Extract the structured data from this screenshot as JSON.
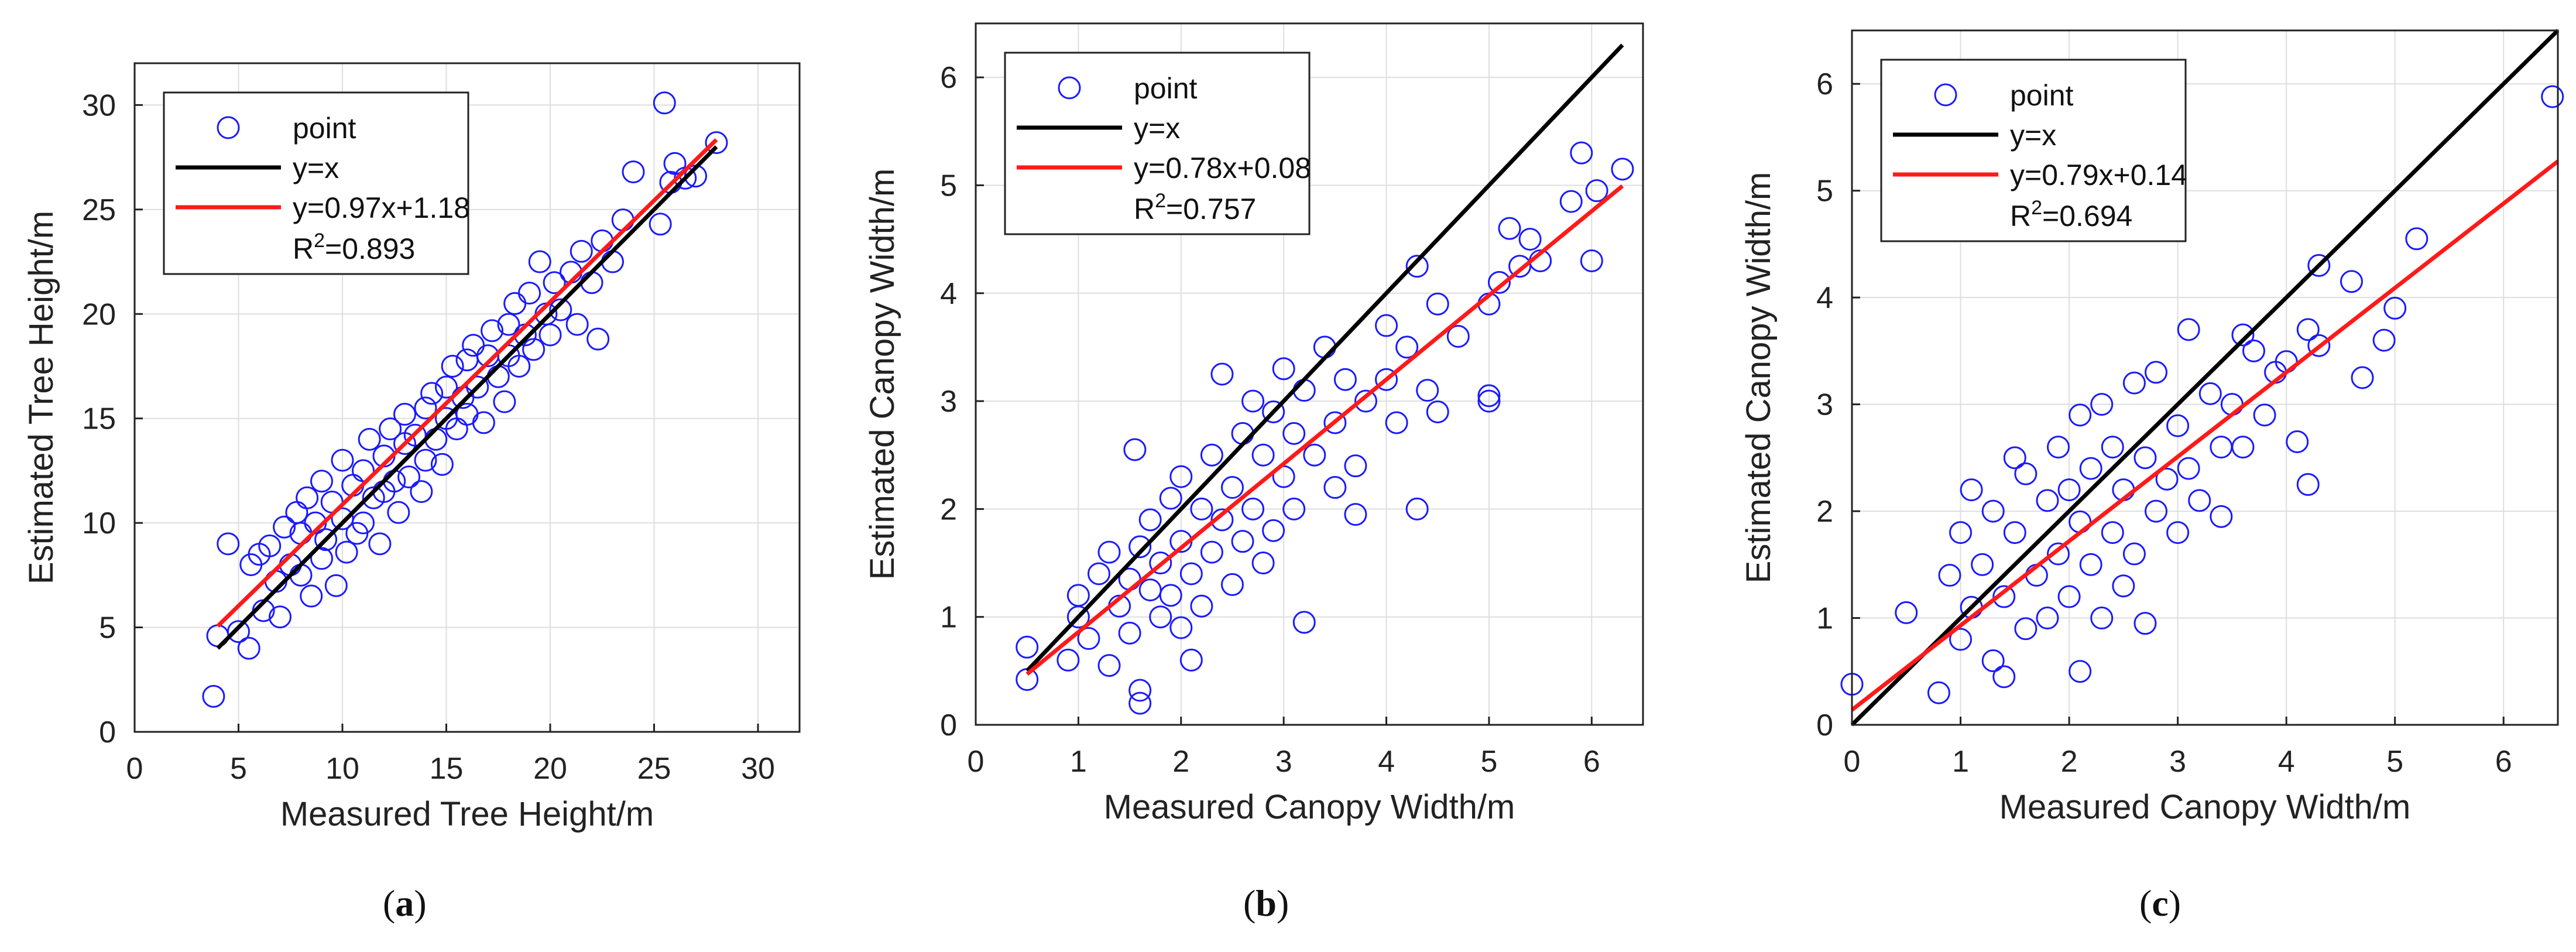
{
  "figure": {
    "panel_labels": [
      {
        "open": "(",
        "letter": "a",
        "close": ")"
      },
      {
        "open": "(",
        "letter": "b",
        "close": ")"
      },
      {
        "open": "(",
        "letter": "c",
        "close": ")"
      }
    ]
  },
  "colors": {
    "points": "#1a1aff",
    "identity_line": "#000000",
    "fit_line": "#ff1a1a",
    "grid": "#dedede",
    "axes": "#222222"
  },
  "chart_data": [
    {
      "type": "scatter",
      "panel": "a",
      "xlabel": "Measured Tree Height/m",
      "ylabel": "Estimated Tree Height/m",
      "xlim": [
        0,
        32
      ],
      "ylim": [
        0,
        32
      ],
      "xticks": [
        0,
        5,
        10,
        15,
        20,
        25,
        30
      ],
      "yticks": [
        0,
        5,
        10,
        15,
        20,
        25,
        30
      ],
      "grid": true,
      "legend": {
        "position": "top-left",
        "point_label": "point",
        "identity_label": "y=x",
        "fit_label": "y=0.97x+1.18",
        "r2_prefix": "R",
        "r2_sup": "2",
        "r2_value": "=0.893"
      },
      "identity_line": {
        "x": [
          4,
          28
        ]
      },
      "fit_line": {
        "slope": 0.97,
        "intercept": 1.18,
        "x": [
          4,
          28
        ]
      },
      "points": [
        [
          3.8,
          1.7
        ],
        [
          4.0,
          4.6
        ],
        [
          4.5,
          9.0
        ],
        [
          5.0,
          4.8
        ],
        [
          5.5,
          4.0
        ],
        [
          5.6,
          8.0
        ],
        [
          6.0,
          8.5
        ],
        [
          6.2,
          5.8
        ],
        [
          6.5,
          8.9
        ],
        [
          6.8,
          7.2
        ],
        [
          7.0,
          5.5
        ],
        [
          7.2,
          9.8
        ],
        [
          7.5,
          8.0
        ],
        [
          7.8,
          10.5
        ],
        [
          8.0,
          7.5
        ],
        [
          8.0,
          9.5
        ],
        [
          8.3,
          11.2
        ],
        [
          8.5,
          6.5
        ],
        [
          8.7,
          10.0
        ],
        [
          9.0,
          8.3
        ],
        [
          9.0,
          12.0
        ],
        [
          9.2,
          9.2
        ],
        [
          9.5,
          11.0
        ],
        [
          9.7,
          7.0
        ],
        [
          10.0,
          10.2
        ],
        [
          10.0,
          13.0
        ],
        [
          10.2,
          8.6
        ],
        [
          10.5,
          11.8
        ],
        [
          10.7,
          9.5
        ],
        [
          11.0,
          12.5
        ],
        [
          11.0,
          10.0
        ],
        [
          11.3,
          14.0
        ],
        [
          11.5,
          11.2
        ],
        [
          11.8,
          9.0
        ],
        [
          12.0,
          13.2
        ],
        [
          12.0,
          11.5
        ],
        [
          12.3,
          14.5
        ],
        [
          12.5,
          12.0
        ],
        [
          12.7,
          10.5
        ],
        [
          13.0,
          13.8
        ],
        [
          13.0,
          15.2
        ],
        [
          13.2,
          12.2
        ],
        [
          13.5,
          14.2
        ],
        [
          13.8,
          11.5
        ],
        [
          14.0,
          15.5
        ],
        [
          14.0,
          13.0
        ],
        [
          14.3,
          16.2
        ],
        [
          14.5,
          14.0
        ],
        [
          14.8,
          12.8
        ],
        [
          15.0,
          16.5
        ],
        [
          15.0,
          15.0
        ],
        [
          15.3,
          17.5
        ],
        [
          15.5,
          14.5
        ],
        [
          15.8,
          16.0
        ],
        [
          16.0,
          17.8
        ],
        [
          16.0,
          15.2
        ],
        [
          16.3,
          18.5
        ],
        [
          16.5,
          16.5
        ],
        [
          16.8,
          14.8
        ],
        [
          17.0,
          18.0
        ],
        [
          17.2,
          19.2
        ],
        [
          17.5,
          17.0
        ],
        [
          17.8,
          15.8
        ],
        [
          18.0,
          19.5
        ],
        [
          18.0,
          18.0
        ],
        [
          18.3,
          20.5
        ],
        [
          18.5,
          17.5
        ],
        [
          18.8,
          19.0
        ],
        [
          19.0,
          21.0
        ],
        [
          19.2,
          18.3
        ],
        [
          19.5,
          22.5
        ],
        [
          19.8,
          20.0
        ],
        [
          20.0,
          19.0
        ],
        [
          20.2,
          21.5
        ],
        [
          20.5,
          20.2
        ],
        [
          21.0,
          22.0
        ],
        [
          21.3,
          19.5
        ],
        [
          21.5,
          23.0
        ],
        [
          22.0,
          21.5
        ],
        [
          22.3,
          18.8
        ],
        [
          22.5,
          23.5
        ],
        [
          23.0,
          22.5
        ],
        [
          23.5,
          24.5
        ],
        [
          24.0,
          26.8
        ],
        [
          25.3,
          24.3
        ],
        [
          25.5,
          30.1
        ],
        [
          25.8,
          26.3
        ],
        [
          26.0,
          27.2
        ],
        [
          26.5,
          26.5
        ],
        [
          27.0,
          26.6
        ],
        [
          28.0,
          28.2
        ]
      ]
    },
    {
      "type": "scatter",
      "panel": "b",
      "xlabel": "Measured Canopy Width/m",
      "ylabel": "Estimated Canopy Width/m",
      "xlim": [
        0,
        6.5
      ],
      "ylim": [
        0,
        6.5
      ],
      "xticks": [
        0,
        1,
        2,
        3,
        4,
        5,
        6
      ],
      "yticks": [
        0,
        1,
        2,
        3,
        4,
        5,
        6
      ],
      "grid": true,
      "legend": {
        "position": "top-left",
        "point_label": "point",
        "identity_label": "y=x",
        "fit_label": "y=0.78x+0.08",
        "r2_prefix": "R",
        "r2_sup": "2",
        "r2_value": "=0.757"
      },
      "identity_line": {
        "x": [
          0.5,
          6.3
        ]
      },
      "fit_line": {
        "slope": 0.78,
        "intercept": 0.08,
        "x": [
          0.5,
          6.3
        ]
      },
      "points": [
        [
          0.5,
          0.42
        ],
        [
          0.5,
          0.72
        ],
        [
          0.9,
          0.6
        ],
        [
          1.0,
          1.2
        ],
        [
          1.0,
          1.0
        ],
        [
          1.1,
          0.8
        ],
        [
          1.2,
          1.4
        ],
        [
          1.3,
          0.55
        ],
        [
          1.3,
          1.6
        ],
        [
          1.4,
          1.1
        ],
        [
          1.5,
          0.85
        ],
        [
          1.5,
          1.35
        ],
        [
          1.55,
          2.55
        ],
        [
          1.6,
          0.2
        ],
        [
          1.6,
          0.32
        ],
        [
          1.6,
          1.65
        ],
        [
          1.7,
          1.25
        ],
        [
          1.7,
          1.9
        ],
        [
          1.8,
          1.0
        ],
        [
          1.8,
          1.5
        ],
        [
          1.9,
          2.1
        ],
        [
          1.9,
          1.2
        ],
        [
          2.0,
          1.7
        ],
        [
          2.0,
          0.9
        ],
        [
          2.0,
          2.3
        ],
        [
          2.1,
          1.4
        ],
        [
          2.1,
          0.6
        ],
        [
          2.2,
          2.0
        ],
        [
          2.2,
          1.1
        ],
        [
          2.3,
          2.5
        ],
        [
          2.3,
          1.6
        ],
        [
          2.4,
          3.25
        ],
        [
          2.4,
          1.9
        ],
        [
          2.5,
          1.3
        ],
        [
          2.5,
          2.2
        ],
        [
          2.6,
          2.7
        ],
        [
          2.6,
          1.7
        ],
        [
          2.7,
          2.0
        ],
        [
          2.7,
          3.0
        ],
        [
          2.8,
          1.5
        ],
        [
          2.8,
          2.5
        ],
        [
          2.9,
          2.9
        ],
        [
          2.9,
          1.8
        ],
        [
          3.0,
          2.3
        ],
        [
          3.0,
          3.3
        ],
        [
          3.1,
          2.0
        ],
        [
          3.1,
          2.7
        ],
        [
          3.2,
          3.1
        ],
        [
          3.2,
          0.95
        ],
        [
          3.3,
          2.5
        ],
        [
          3.4,
          3.5
        ],
        [
          3.5,
          2.8
        ],
        [
          3.5,
          2.2
        ],
        [
          3.6,
          3.2
        ],
        [
          3.7,
          2.4
        ],
        [
          3.7,
          1.95
        ],
        [
          3.8,
          3.0
        ],
        [
          4.0,
          3.7
        ],
        [
          4.0,
          3.2
        ],
        [
          4.1,
          2.8
        ],
        [
          4.2,
          3.5
        ],
        [
          4.3,
          4.25
        ],
        [
          4.3,
          2.0
        ],
        [
          4.4,
          3.1
        ],
        [
          4.5,
          2.9
        ],
        [
          4.5,
          3.9
        ],
        [
          4.7,
          3.6
        ],
        [
          5.0,
          3.05
        ],
        [
          5.0,
          3.0
        ],
        [
          5.0,
          3.9
        ],
        [
          5.1,
          4.1
        ],
        [
          5.2,
          4.6
        ],
        [
          5.3,
          4.25
        ],
        [
          5.4,
          4.5
        ],
        [
          5.5,
          4.3
        ],
        [
          5.8,
          4.85
        ],
        [
          5.9,
          5.3
        ],
        [
          6.0,
          4.3
        ],
        [
          6.05,
          4.95
        ],
        [
          6.3,
          5.15
        ]
      ]
    },
    {
      "type": "scatter",
      "panel": "c",
      "xlabel": "Measured Canopy Width/m",
      "ylabel": "Estimated Canopy Width/m",
      "xlim": [
        0,
        6.5
      ],
      "ylim": [
        0,
        6.5
      ],
      "xticks": [
        0,
        1,
        2,
        3,
        4,
        5,
        6
      ],
      "yticks": [
        0,
        1,
        2,
        3,
        4,
        5,
        6
      ],
      "grid": true,
      "legend": {
        "position": "top-left",
        "point_label": "point",
        "identity_label": "y=x",
        "fit_label": "y=0.79x+0.14",
        "r2_prefix": "R",
        "r2_sup": "2",
        "r2_value": "=0.694"
      },
      "identity_line": {
        "x": [
          0,
          6.5
        ]
      },
      "fit_line": {
        "slope": 0.79,
        "intercept": 0.14,
        "x": [
          0,
          6.5
        ]
      },
      "points": [
        [
          0.0,
          0.38
        ],
        [
          0.5,
          1.05
        ],
        [
          0.8,
          0.3
        ],
        [
          0.9,
          1.4
        ],
        [
          1.0,
          0.8
        ],
        [
          1.0,
          1.8
        ],
        [
          1.1,
          1.1
        ],
        [
          1.1,
          2.2
        ],
        [
          1.2,
          1.5
        ],
        [
          1.3,
          0.6
        ],
        [
          1.3,
          2.0
        ],
        [
          1.4,
          0.45
        ],
        [
          1.4,
          1.2
        ],
        [
          1.5,
          2.5
        ],
        [
          1.5,
          1.8
        ],
        [
          1.6,
          0.9
        ],
        [
          1.6,
          2.35
        ],
        [
          1.7,
          1.4
        ],
        [
          1.8,
          2.1
        ],
        [
          1.8,
          1.0
        ],
        [
          1.9,
          2.6
        ],
        [
          1.9,
          1.6
        ],
        [
          2.0,
          1.2
        ],
        [
          2.0,
          2.2
        ],
        [
          2.1,
          0.5
        ],
        [
          2.1,
          1.9
        ],
        [
          2.1,
          2.9
        ],
        [
          2.2,
          1.5
        ],
        [
          2.2,
          2.4
        ],
        [
          2.3,
          1.0
        ],
        [
          2.3,
          3.0
        ],
        [
          2.4,
          1.8
        ],
        [
          2.4,
          2.6
        ],
        [
          2.5,
          1.3
        ],
        [
          2.5,
          2.2
        ],
        [
          2.6,
          3.2
        ],
        [
          2.6,
          1.6
        ],
        [
          2.7,
          2.5
        ],
        [
          2.7,
          0.95
        ],
        [
          2.8,
          2.0
        ],
        [
          2.8,
          3.3
        ],
        [
          2.9,
          2.3
        ],
        [
          3.0,
          2.8
        ],
        [
          3.0,
          1.8
        ],
        [
          3.1,
          3.7
        ],
        [
          3.1,
          2.4
        ],
        [
          3.2,
          2.1
        ],
        [
          3.3,
          3.1
        ],
        [
          3.4,
          2.6
        ],
        [
          3.4,
          1.95
        ],
        [
          3.5,
          3.0
        ],
        [
          3.6,
          3.65
        ],
        [
          3.6,
          2.6
        ],
        [
          3.7,
          3.5
        ],
        [
          3.8,
          2.9
        ],
        [
          3.9,
          3.3
        ],
        [
          4.0,
          3.4
        ],
        [
          4.1,
          2.65
        ],
        [
          4.2,
          3.7
        ],
        [
          4.2,
          2.25
        ],
        [
          4.3,
          3.55
        ],
        [
          4.3,
          4.3
        ],
        [
          4.6,
          4.15
        ],
        [
          4.7,
          3.25
        ],
        [
          4.9,
          3.6
        ],
        [
          5.0,
          3.9
        ],
        [
          5.2,
          4.55
        ],
        [
          6.45,
          5.88
        ]
      ]
    }
  ]
}
